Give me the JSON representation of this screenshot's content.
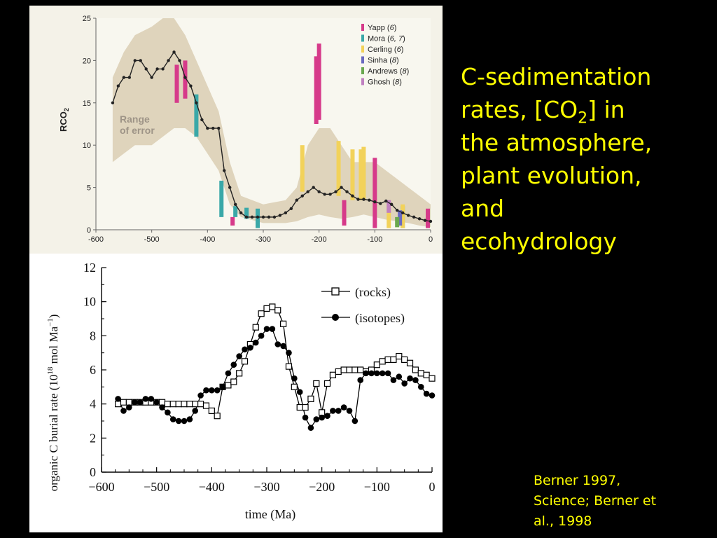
{
  "slide": {
    "title_lines": [
      "C-sedimentation",
      "rates, [CO",
      "2",
      "] in",
      "the atmosphere,",
      "plant evolution,",
      "and",
      "ecohydrology"
    ],
    "citation_lines": [
      "Berner 1997,",
      "Science; Berner et",
      "al., 1998"
    ],
    "text_color": "#ffff00",
    "background": "#000000"
  },
  "chart_data": [
    {
      "type": "line",
      "ylabel": "RCO",
      "ylabel_sub": "2",
      "xlim": [
        -600,
        0
      ],
      "ylim": [
        0,
        25
      ],
      "x_ticks": [
        "-600",
        "-500",
        "-400",
        "-300",
        "-200",
        "-100",
        "0"
      ],
      "y_ticks": [
        "0",
        "5",
        "10",
        "15",
        "20",
        "25"
      ],
      "annotation": [
        "Range",
        "of error"
      ],
      "line": {
        "x": [
          -570,
          -560,
          -550,
          -540,
          -530,
          -520,
          -510,
          -500,
          -490,
          -480,
          -470,
          -460,
          -450,
          -440,
          -430,
          -420,
          -410,
          -400,
          -390,
          -380,
          -370,
          -360,
          -350,
          -340,
          -330,
          -320,
          -310,
          -300,
          -290,
          -280,
          -270,
          -260,
          -250,
          -240,
          -230,
          -220,
          -210,
          -200,
          -190,
          -180,
          -170,
          -160,
          -150,
          -140,
          -130,
          -120,
          -110,
          -100,
          -90,
          -80,
          -70,
          -60,
          -50,
          -40,
          -30,
          -20,
          -10,
          0
        ],
        "y": [
          15,
          17,
          18,
          18,
          20,
          20,
          19,
          18,
          19,
          19,
          20,
          21,
          20,
          18,
          17,
          15,
          13,
          12,
          12,
          12,
          7,
          5,
          3,
          2,
          1.5,
          1.5,
          1.5,
          1.5,
          1.5,
          1.5,
          1.7,
          2,
          2.5,
          3.5,
          4,
          4.5,
          5,
          4.5,
          4.2,
          4.2,
          4.5,
          5,
          4.5,
          4,
          3.6,
          3.6,
          3.5,
          3.3,
          3.1,
          3.4,
          3,
          2.3,
          2,
          1.7,
          1.5,
          1.3,
          1.1,
          1.0
        ]
      },
      "error_band": {
        "x": [
          -570,
          -550,
          -530,
          -500,
          -480,
          -460,
          -440,
          -420,
          -400,
          -380,
          -360,
          -340,
          -300,
          -260,
          -240,
          -220,
          -200,
          -180,
          -160,
          -140,
          -120,
          -100,
          -80,
          -60,
          -40,
          -20,
          0
        ],
        "upper": [
          18,
          21,
          23,
          24,
          25,
          25,
          23,
          20,
          17,
          14,
          8,
          4,
          3,
          3.5,
          5,
          10,
          12,
          12,
          10,
          8,
          8,
          8,
          7,
          6,
          5,
          4,
          3
        ],
        "lower": [
          8,
          9,
          10,
          10,
          11,
          12,
          12,
          11,
          9,
          7,
          3,
          1.5,
          0.8,
          0.8,
          1,
          1.5,
          1.8,
          1.5,
          1.3,
          1.5,
          1.8,
          1.5,
          1.2,
          1,
          0.8,
          0.5,
          0.3
        ]
      },
      "series": [
        {
          "name": "Yapp",
          "ref": "6",
          "color": "#d63a8a",
          "bars": [
            [
              -455,
              15,
              19.5
            ],
            [
              -440,
              15.5,
              20
            ],
            [
              -355,
              0.5,
              1.5
            ],
            [
              -205,
              12.5,
              20.5
            ],
            [
              -200,
              13,
              22
            ],
            [
              -155,
              0.5,
              3.5
            ],
            [
              -100,
              0.2,
              8.5
            ],
            [
              -5,
              0.2,
              2.5
            ]
          ]
        },
        {
          "name": "Mora",
          "ref": "6, 7",
          "color": "#3aa8a8",
          "bars": [
            [
              -420,
              11,
              16
            ],
            [
              -375,
              1.5,
              5.8
            ],
            [
              -350,
              1.5,
              2.8
            ],
            [
              -330,
              1.3,
              2.6
            ],
            [
              -310,
              0.2,
              2.5
            ],
            [
              -50,
              0.2,
              2.8
            ]
          ]
        },
        {
          "name": "Cerling",
          "ref": "6",
          "color": "#f2d25a",
          "bars": [
            [
              -230,
              4.5,
              10
            ],
            [
              -165,
              4,
              10.5
            ],
            [
              -140,
              3.5,
              9.5
            ],
            [
              -125,
              3.5,
              9.5
            ],
            [
              -120,
              3.5,
              9.8
            ],
            [
              -75,
              0.2,
              3
            ],
            [
              -50,
              0.2,
              3
            ]
          ]
        },
        {
          "name": "Sinha",
          "ref": "8",
          "color": "#6a6ac0",
          "bars": [
            [
              -55,
              0.5,
              2.3
            ]
          ]
        },
        {
          "name": "Andrews",
          "ref": "8",
          "color": "#6aa84f",
          "bars": [
            [
              -60,
              0.3,
              1.5
            ]
          ]
        },
        {
          "name": "Ghosh",
          "ref": "8",
          "color": "#c080c0",
          "bars": [
            [
              -75,
              2,
              3.5
            ]
          ]
        }
      ]
    },
    {
      "type": "line",
      "xlabel": "time (Ma)",
      "ylabel": "organic C burial rate (10",
      "ylabel_sup": "18",
      "ylabel_tail": " mol Ma",
      "ylabel_sup2": "−1",
      "ylabel_end": ")",
      "xlim": [
        -600,
        0
      ],
      "ylim": [
        0,
        12
      ],
      "x_ticks": [
        "−600",
        "−500",
        "−400",
        "−300",
        "−200",
        "−100",
        "0"
      ],
      "y_ticks": [
        "0",
        "2",
        "4",
        "6",
        "8",
        "10",
        "12"
      ],
      "series": [
        {
          "name": "(rocks)",
          "marker": "open-square",
          "x": [
            -570,
            -560,
            -550,
            -540,
            -530,
            -520,
            -510,
            -500,
            -490,
            -480,
            -470,
            -460,
            -450,
            -440,
            -430,
            -420,
            -410,
            -400,
            -390,
            -380,
            -370,
            -360,
            -350,
            -340,
            -330,
            -320,
            -310,
            -300,
            -290,
            -280,
            -270,
            -260,
            -250,
            -240,
            -230,
            -220,
            -210,
            -200,
            -190,
            -180,
            -170,
            -160,
            -150,
            -140,
            -130,
            -120,
            -110,
            -100,
            -90,
            -80,
            -70,
            -60,
            -50,
            -40,
            -30,
            -20,
            -10,
            0
          ],
          "y": [
            4.0,
            4.1,
            4.1,
            4.1,
            4.1,
            4.1,
            4.1,
            4.1,
            4.1,
            4.0,
            4.0,
            4.0,
            4.0,
            4.0,
            4.0,
            4.0,
            3.9,
            3.6,
            3.3,
            5.0,
            5.1,
            5.3,
            5.8,
            6.5,
            7.5,
            8.5,
            9.3,
            9.6,
            9.7,
            9.5,
            8.7,
            6.2,
            5.0,
            3.8,
            3.8,
            4.3,
            5.2,
            3.5,
            5.2,
            5.7,
            5.9,
            6.0,
            6.0,
            6.0,
            6.0,
            5.9,
            6.0,
            6.3,
            6.5,
            6.6,
            6.6,
            6.8,
            6.6,
            6.4,
            6.0,
            5.8,
            5.7,
            5.5
          ]
        },
        {
          "name": "(isotopes)",
          "marker": "filled-circle",
          "x": [
            -570,
            -560,
            -550,
            -540,
            -530,
            -520,
            -510,
            -500,
            -490,
            -480,
            -470,
            -460,
            -450,
            -440,
            -430,
            -420,
            -410,
            -400,
            -390,
            -380,
            -370,
            -360,
            -350,
            -340,
            -330,
            -320,
            -310,
            -300,
            -290,
            -280,
            -270,
            -260,
            -250,
            -240,
            -230,
            -220,
            -210,
            -200,
            -190,
            -180,
            -170,
            -160,
            -150,
            -140,
            -130,
            -120,
            -110,
            -100,
            -90,
            -80,
            -70,
            -60,
            -50,
            -40,
            -30,
            -20,
            -10,
            0
          ],
          "y": [
            4.3,
            3.6,
            3.8,
            4.1,
            4.1,
            4.3,
            4.3,
            4.1,
            3.8,
            3.5,
            3.1,
            3.0,
            3.0,
            3.1,
            3.6,
            4.5,
            4.8,
            4.8,
            4.8,
            5.0,
            5.8,
            6.3,
            6.8,
            7.2,
            7.3,
            7.6,
            8.0,
            8.4,
            8.4,
            7.5,
            7.4,
            7.0,
            5.5,
            4.7,
            3.2,
            2.6,
            3.1,
            3.2,
            3.3,
            3.6,
            3.6,
            3.8,
            3.6,
            3.0,
            5.4,
            5.8,
            5.8,
            5.8,
            5.8,
            5.8,
            5.4,
            5.6,
            5.2,
            5.5,
            5.4,
            5.0,
            4.6,
            4.5
          ]
        }
      ]
    }
  ]
}
